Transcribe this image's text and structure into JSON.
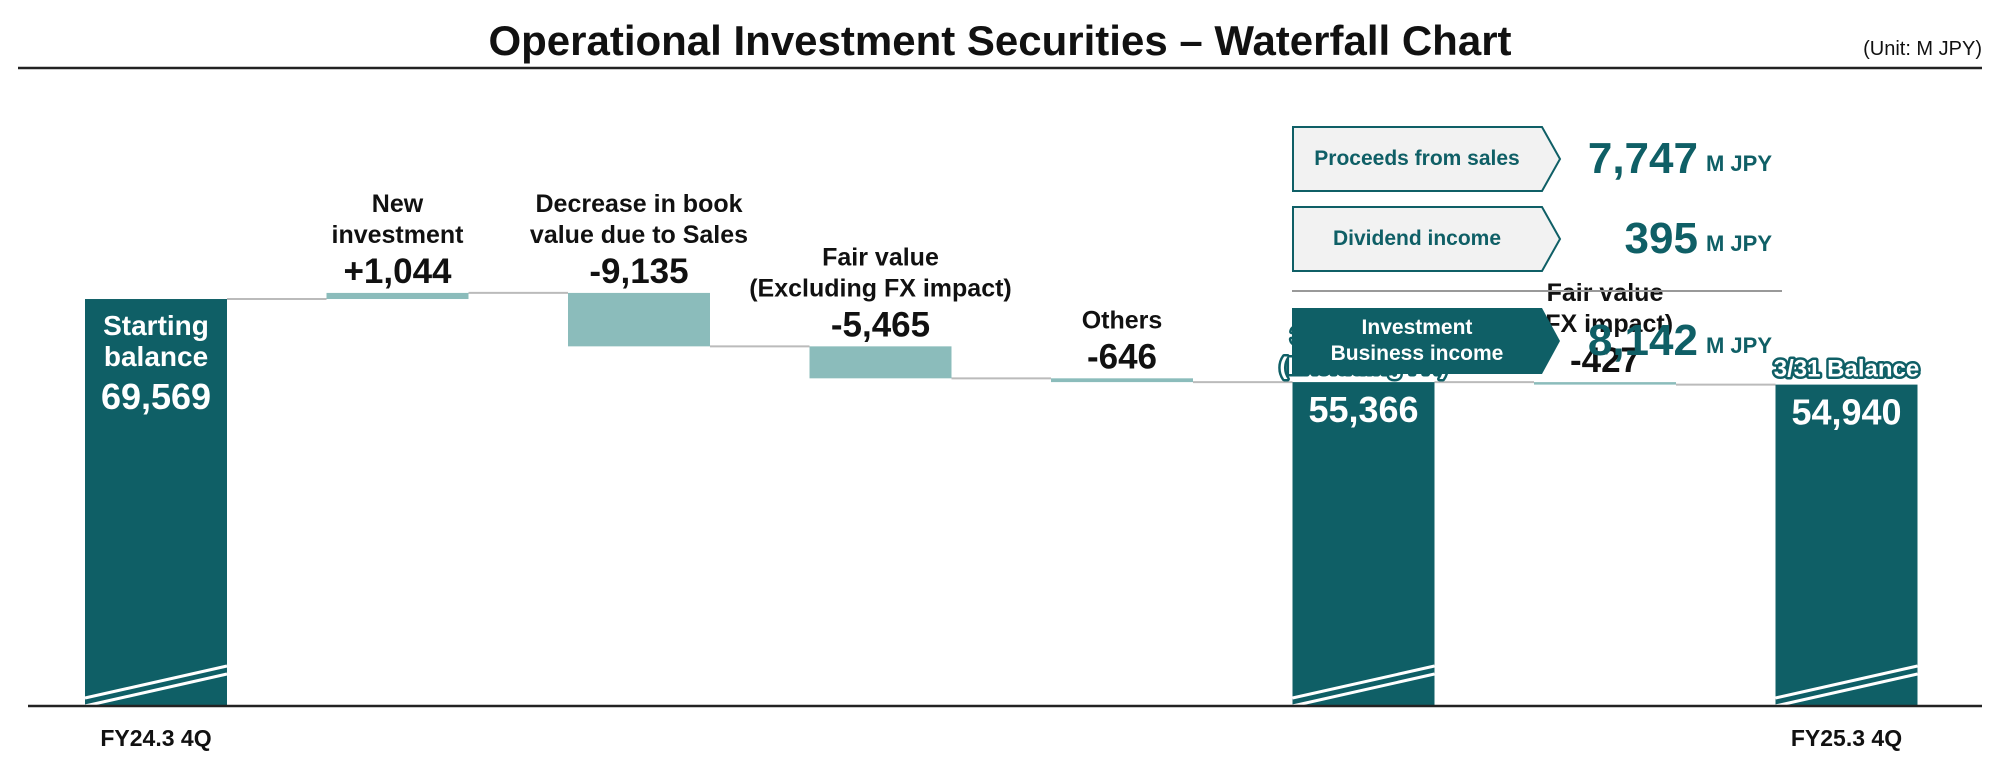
{
  "colors": {
    "total_bar": "#0f5f66",
    "delta_bar": "#8bbcbb",
    "connector": "#bbbbbb",
    "text": "#111111",
    "summary_accent": "#0f5f66",
    "summary_light_fill": "#f2f2f2"
  },
  "chart_data": {
    "type": "waterfall",
    "title": "Operational Investment Securities – Waterfall Chart",
    "unit": "(Unit: M JPY)",
    "ylim": [
      0,
      80000
    ],
    "categories": [
      {
        "label_lines": [
          "Starting",
          "balance"
        ],
        "value_text": "69,569",
        "kind": "total",
        "value": 69569
      },
      {
        "label_lines": [
          "New",
          "investment"
        ],
        "value_text": "+1,044",
        "kind": "delta",
        "value": 1044
      },
      {
        "label_lines": [
          "Decrease in book",
          "value due to Sales"
        ],
        "value_text": "-9,135",
        "kind": "delta",
        "value": -9135
      },
      {
        "label_lines": [
          "Fair value",
          "(Excluding FX impact)"
        ],
        "value_text": "-5,465",
        "kind": "delta",
        "value": -5465
      },
      {
        "label_lines": [
          "Others"
        ],
        "value_text": "-646",
        "kind": "delta",
        "value": -646
      },
      {
        "label_lines": [
          "3/31 Balance",
          "(Excluding FX)"
        ],
        "value_text": "55,366",
        "kind": "total",
        "value": 55366
      },
      {
        "label_lines": [
          "Fair value",
          "(FX impact)"
        ],
        "value_text": "-427",
        "kind": "delta",
        "value": -427
      },
      {
        "label_lines": [
          "3/31 Balance"
        ],
        "value_text": "54,940",
        "kind": "total",
        "value": 54940
      }
    ],
    "x_ticks": [
      {
        "index": 0,
        "label": "FY24.3 4Q"
      },
      {
        "index": 7,
        "label": "FY25.3 4Q"
      }
    ],
    "grid": false,
    "legend": "none"
  },
  "summary": {
    "rows": [
      {
        "label_lines": [
          "Proceeds from sales"
        ],
        "amount": "7,747",
        "unit": "M JPY",
        "style": "light"
      },
      {
        "label_lines": [
          "Dividend income"
        ],
        "amount": "395",
        "unit": "M JPY",
        "style": "light"
      },
      {
        "label_lines": [
          "Investment",
          "Business income"
        ],
        "amount": "8,142",
        "unit": "M JPY",
        "style": "dark"
      }
    ]
  }
}
